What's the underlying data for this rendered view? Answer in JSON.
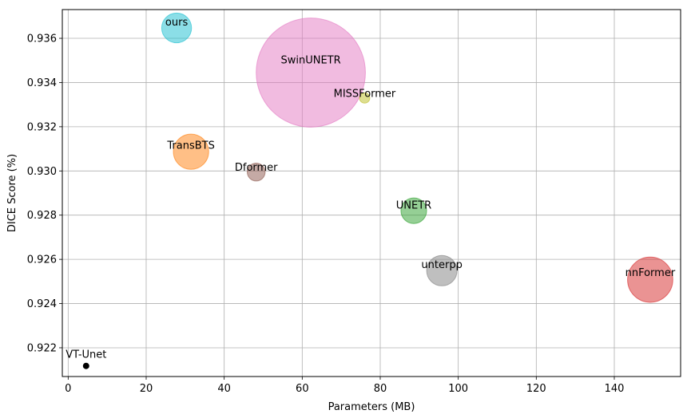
{
  "chart_data": {
    "type": "scatter",
    "title": "",
    "xlabel": "Parameters (MB)",
    "ylabel": "DICE Score (%)",
    "xlim": [
      -1.5,
      157
    ],
    "ylim": [
      0.9207,
      0.9373
    ],
    "xticks": [
      0,
      20,
      40,
      60,
      80,
      100,
      120,
      140
    ],
    "yticks": [
      0.922,
      0.924,
      0.926,
      0.928,
      0.93,
      0.932,
      0.934,
      0.936
    ],
    "xtick_labels": [
      "0",
      "20",
      "40",
      "60",
      "80",
      "100",
      "120",
      "140"
    ],
    "ytick_labels": [
      "0.922",
      "0.924",
      "0.926",
      "0.928",
      "0.930",
      "0.932",
      "0.934",
      "0.936"
    ],
    "grid": true,
    "points": [
      {
        "label": "ours",
        "x": 27.8,
        "y": 0.93647,
        "size": 5,
        "color": "#17becf"
      },
      {
        "label": "SwinUNETR",
        "x": 62.2,
        "y": 0.93445,
        "size": 67,
        "color": "#e377c2"
      },
      {
        "label": "MISSFormer",
        "x": 76.0,
        "y": 0.9333,
        "size": 0.6,
        "color": "#bcbd22"
      },
      {
        "label": "TransBTS",
        "x": 31.5,
        "y": 0.93087,
        "size": 7,
        "color": "#ff7f0e"
      },
      {
        "label": "Dformer",
        "x": 48.2,
        "y": 0.92995,
        "size": 1.8,
        "color": "#8c564b"
      },
      {
        "label": "UNETR",
        "x": 88.6,
        "y": 0.9282,
        "size": 3.7,
        "color": "#2ca02c"
      },
      {
        "label": "unterpp",
        "x": 95.8,
        "y": 0.92549,
        "size": 5.2,
        "color": "#7f7f7f"
      },
      {
        "label": "nnFormer",
        "x": 149.2,
        "y": 0.92508,
        "size": 11.5,
        "color": "#d62728"
      },
      {
        "label": "VT-Unet",
        "x": 4.6,
        "y": 0.92118,
        "size": 0.02,
        "color": "#000000"
      }
    ]
  }
}
